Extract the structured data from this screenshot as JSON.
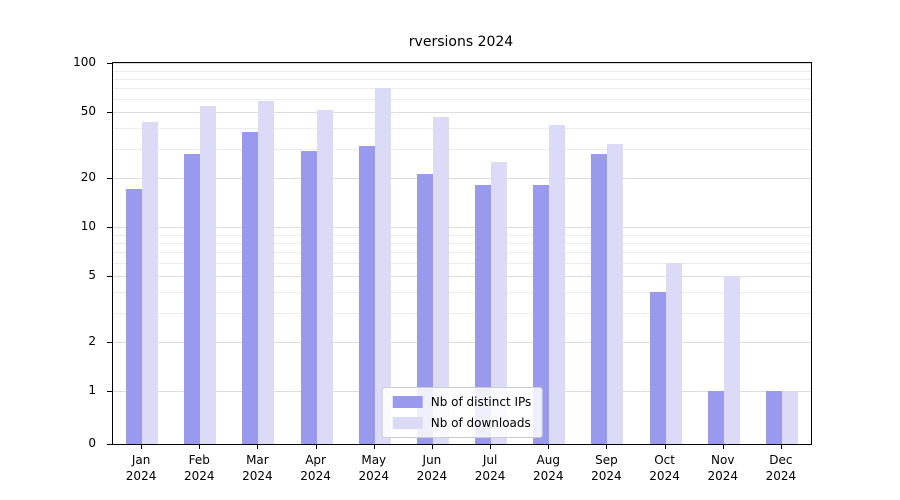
{
  "chart_data": {
    "type": "bar",
    "title": "rversions 2024",
    "yscale": "symlog",
    "grid": "horizontal-minor-on",
    "legend_position": "bottom-center-inside",
    "year_label": "2024",
    "categories": [
      "Jan",
      "Feb",
      "Mar",
      "Apr",
      "May",
      "Jun",
      "Jul",
      "Aug",
      "Sep",
      "Oct",
      "Nov",
      "Dec"
    ],
    "yticks": [
      0,
      1,
      2,
      5,
      10,
      20,
      50,
      100
    ],
    "y_minor_gridlines": [
      2,
      3,
      4,
      5,
      6,
      7,
      8,
      9,
      20,
      30,
      40,
      50,
      60,
      70,
      80,
      90
    ],
    "ylim": [
      0,
      100
    ],
    "series": [
      {
        "name": "Nb of distinct IPs",
        "color": "#9999ee",
        "values": [
          17,
          28,
          38,
          29,
          31,
          21,
          18,
          18,
          28,
          4,
          1,
          1
        ]
      },
      {
        "name": "Nb of downloads",
        "color": "#dbdbf8",
        "values": [
          44,
          55,
          59,
          52,
          70,
          47,
          25,
          42,
          32,
          6,
          5,
          1
        ]
      }
    ]
  }
}
